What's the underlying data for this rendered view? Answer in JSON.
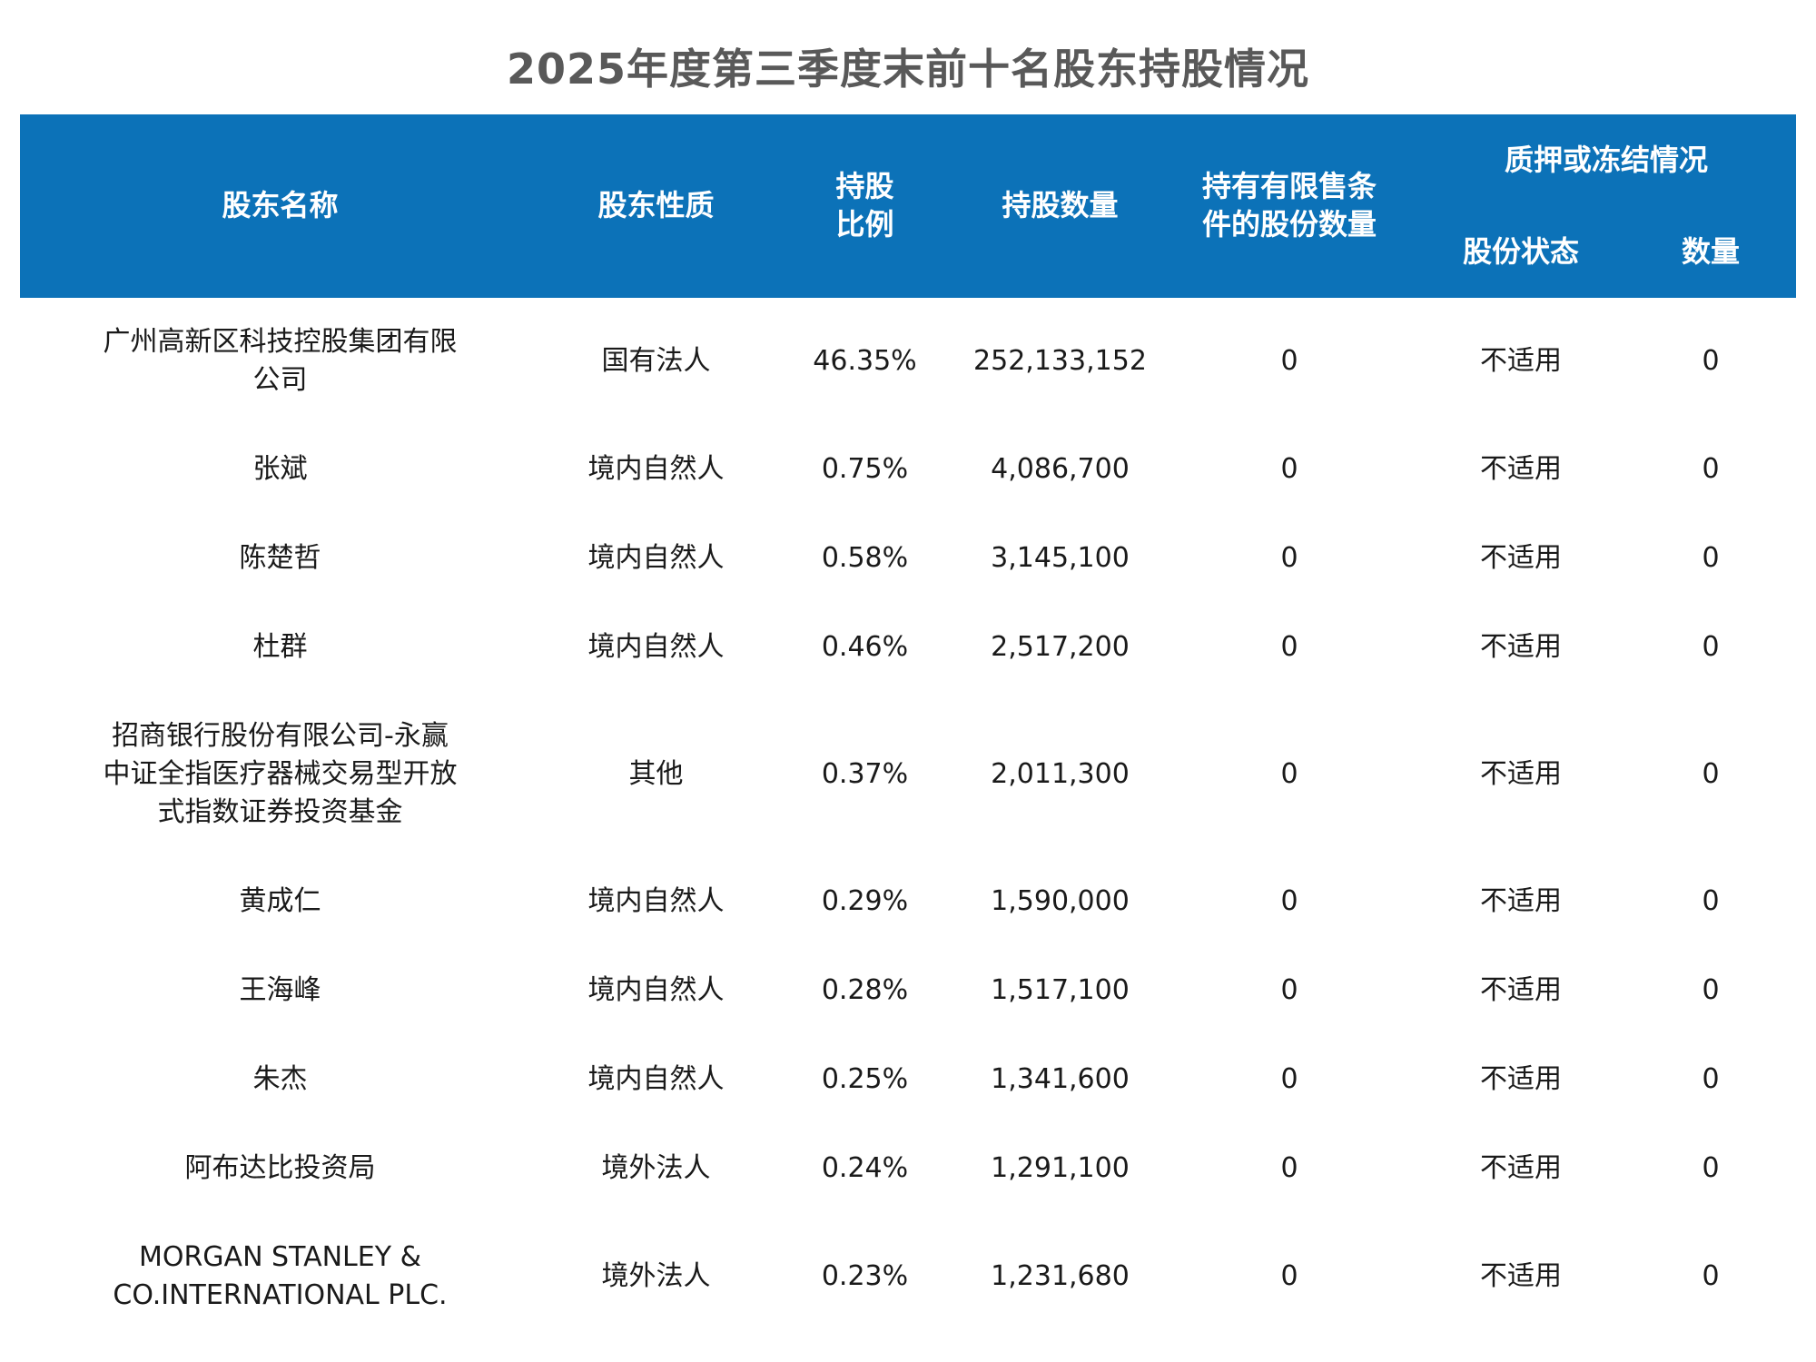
{
  "title": "2025年度第三季度末前十名股东持股情况",
  "colors": {
    "header_bg": "#0C72B8",
    "header_text": "#FFFFFF",
    "title_text": "#595959",
    "body_text": "#1A1A1A",
    "page_bg": "#FFFFFF"
  },
  "table": {
    "header": {
      "col_shareholder": "股东名称",
      "col_nature": "股东性质",
      "col_ratio": "持股比例",
      "col_shares": "持股数量",
      "col_restricted": "持有有限售条件的股份数量",
      "col_pledge_group": "质押或冻结情况",
      "col_status": "股份状态",
      "col_qty": "数量"
    },
    "rows": [
      {
        "name": "广州高新区科技控股集团有限公司",
        "nature": "国有法人",
        "ratio": "46.35%",
        "shares": "252,133,152",
        "restricted": "0",
        "status": "不适用",
        "qty": "0"
      },
      {
        "name": "张斌",
        "nature": "境内自然人",
        "ratio": "0.75%",
        "shares": "4,086,700",
        "restricted": "0",
        "status": "不适用",
        "qty": "0"
      },
      {
        "name": "陈楚哲",
        "nature": "境内自然人",
        "ratio": "0.58%",
        "shares": "3,145,100",
        "restricted": "0",
        "status": "不适用",
        "qty": "0"
      },
      {
        "name": "杜群",
        "nature": "境内自然人",
        "ratio": "0.46%",
        "shares": "2,517,200",
        "restricted": "0",
        "status": "不适用",
        "qty": "0"
      },
      {
        "name": "招商银行股份有限公司-永赢中证全指医疗器械交易型开放式指数证券投资基金",
        "nature": "其他",
        "ratio": "0.37%",
        "shares": "2,011,300",
        "restricted": "0",
        "status": "不适用",
        "qty": "0"
      },
      {
        "name": "黄成仁",
        "nature": "境内自然人",
        "ratio": "0.29%",
        "shares": "1,590,000",
        "restricted": "0",
        "status": "不适用",
        "qty": "0"
      },
      {
        "name": "王海峰",
        "nature": "境内自然人",
        "ratio": "0.28%",
        "shares": "1,517,100",
        "restricted": "0",
        "status": "不适用",
        "qty": "0"
      },
      {
        "name": "朱杰",
        "nature": "境内自然人",
        "ratio": "0.25%",
        "shares": "1,341,600",
        "restricted": "0",
        "status": "不适用",
        "qty": "0"
      },
      {
        "name": "阿布达比投资局",
        "nature": "境外法人",
        "ratio": "0.24%",
        "shares": "1,291,100",
        "restricted": "0",
        "status": "不适用",
        "qty": "0"
      },
      {
        "name": "MORGAN STANLEY & CO.INTERNATIONAL PLC.",
        "nature": "境外法人",
        "ratio": "0.23%",
        "shares": "1,231,680",
        "restricted": "0",
        "status": "不适用",
        "qty": "0"
      }
    ]
  }
}
